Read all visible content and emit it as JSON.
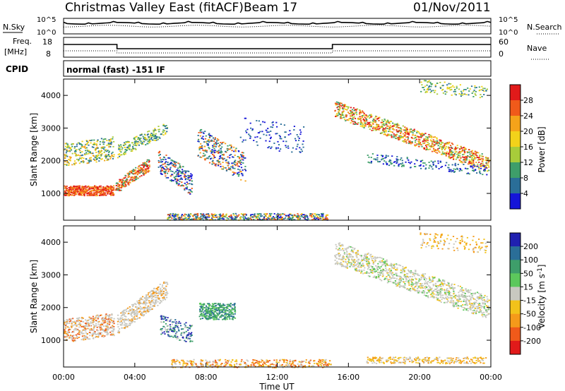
{
  "header": {
    "title": "Christmas Valley East (fitACF)",
    "beam": "Beam 17",
    "date": "01/Nov/2011"
  },
  "noise_panel": {
    "left_label": "N.Sky",
    "left_ticks": [
      "10^5",
      "10^0"
    ],
    "right_ticks": [
      "10^5",
      "10^0"
    ],
    "right_label": "N.Search"
  },
  "freq_panel": {
    "left_label_1": "Freq.",
    "left_label_2": "[MHz]",
    "left_ticks": [
      "18",
      "8"
    ],
    "right_ticks": [
      "60",
      "0"
    ],
    "right_label": "Nave"
  },
  "cpid": {
    "label": "CPID",
    "value": "normal (fast) -151 IF"
  },
  "chart_data": [
    {
      "type": "heatmap",
      "name": "power",
      "ylabel": "Slant Range [km]",
      "xlabel": "",
      "xlim": [
        0,
        24
      ],
      "ylim": [
        180,
        4500
      ],
      "yticks": [
        "1000",
        "2000",
        "3000",
        "4000"
      ],
      "colorbar": {
        "label": "Power [dB]",
        "ticks": [
          "28",
          "24",
          "20",
          "16",
          "12",
          "8",
          "4"
        ],
        "colors": [
          "#e11a1a",
          "#f05a1a",
          "#f5a31a",
          "#f2d21a",
          "#a8cc3a",
          "#3e9e6a",
          "#2a6e98",
          "#1515d8"
        ]
      }
    },
    {
      "type": "heatmap",
      "name": "velocity",
      "ylabel": "Slant Range [km]",
      "xlabel": "Time UT",
      "xlim": [
        0,
        24
      ],
      "ylim": [
        180,
        4500
      ],
      "xticks": [
        "00:00",
        "04:00",
        "08:00",
        "12:00",
        "16:00",
        "20:00",
        "00:00"
      ],
      "yticks": [
        "1000",
        "2000",
        "3000",
        "4000"
      ],
      "colorbar": {
        "label": "Velocity [m s",
        "label_sup": "-1",
        "label_end": "]",
        "ticks": [
          "200",
          "100",
          "50",
          "15",
          "-15",
          "-50",
          "-100",
          "-200"
        ],
        "colors": [
          "#2020b0",
          "#2a6e98",
          "#3e9e6a",
          "#5cc85c",
          "#c8c8c0",
          "#f2c21a",
          "#f59a1a",
          "#f05a1a",
          "#e11a1a"
        ]
      }
    }
  ]
}
